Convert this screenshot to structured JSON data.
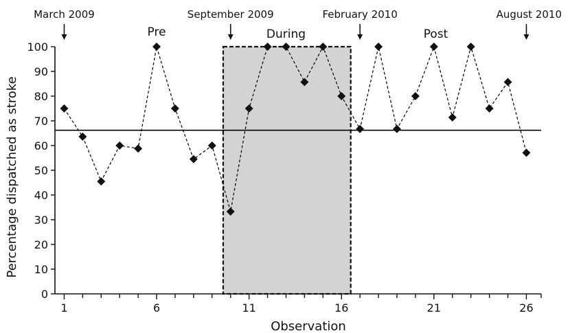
{
  "chart_data": {
    "type": "line",
    "xlabel": "Observation",
    "ylabel": "Percentage dispatched as stroke",
    "xlim": [
      0.5,
      26.8
    ],
    "ylim": [
      0,
      100
    ],
    "x_ticks": [
      1,
      6,
      11,
      16,
      21,
      26
    ],
    "y_ticks": [
      0,
      10,
      20,
      30,
      40,
      50,
      60,
      70,
      80,
      90,
      100
    ],
    "grid": false,
    "legend": "none",
    "series": [
      {
        "x": [
          1,
          2,
          3,
          4,
          5,
          6,
          7,
          8,
          9,
          10,
          11,
          12,
          13,
          14,
          15,
          16,
          17,
          18,
          19,
          20,
          21,
          22,
          23,
          24,
          25,
          26
        ],
        "values": [
          75,
          63.6,
          45.5,
          60,
          58.8,
          100,
          75,
          54.5,
          60,
          33.3,
          75,
          100,
          100,
          85.7,
          100,
          80,
          66.7,
          100,
          66.7,
          80,
          100,
          71.4,
          100,
          75,
          85.7,
          57.1
        ],
        "marker": "diamond",
        "line_style": "dashed",
        "color": "#000000"
      }
    ],
    "reference_line": {
      "y": 66.2,
      "style": "solid",
      "color": "#000000"
    },
    "shaded_region": {
      "x_start": 9.6,
      "x_end": 16.5,
      "fill": "#d3d3d3",
      "border": "dashed"
    },
    "phase_labels": [
      {
        "text": "Pre",
        "x": 6
      },
      {
        "text": "During",
        "x": 13
      },
      {
        "text": "Post",
        "x": 21.1
      }
    ],
    "date_annotations": [
      {
        "text": "March 2009",
        "x": 1
      },
      {
        "text": "September 2009",
        "x": 10
      },
      {
        "text": "February 2010",
        "x": 17
      },
      {
        "text": "August 2010",
        "x": 26
      }
    ]
  }
}
